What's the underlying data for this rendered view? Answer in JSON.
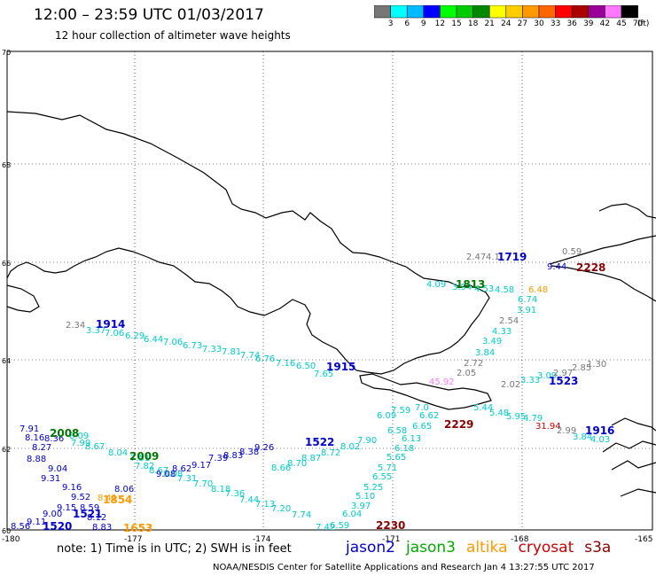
{
  "header": {
    "title": "12:00 – 23:59 UTC 01/03/2017",
    "subtitle": "12 hour collection of altimeter wave heights"
  },
  "colorbar": {
    "unit": "(ft)",
    "ticks": [
      "3",
      "6",
      "9",
      "12",
      "15",
      "18",
      "21",
      "24",
      "27",
      "30",
      "33",
      "36",
      "39",
      "42",
      "45",
      "70"
    ],
    "colors": [
      "#777777",
      "#00ffff",
      "#00bbff",
      "#0000ff",
      "#00ff00",
      "#00cc00",
      "#008800",
      "#ffff00",
      "#ffcc00",
      "#ff9900",
      "#ff6600",
      "#ff0000",
      "#aa0000",
      "#990099",
      "#ff77ff",
      "#000000"
    ]
  },
  "map": {
    "lat_labels": [
      "70",
      "68",
      "66",
      "64",
      "62",
      "60"
    ],
    "lon_labels": [
      "-180",
      "-177",
      "-174",
      "-171",
      "-168",
      "-165"
    ],
    "times": [
      {
        "text": "1719",
        "color": "#0000cc"
      },
      {
        "text": "2228",
        "color": "#8b0000"
      },
      {
        "text": "1813",
        "color": "#007700"
      },
      {
        "text": "1914",
        "color": "#0000cc"
      },
      {
        "text": "1915",
        "color": "#0000cc"
      },
      {
        "text": "1523",
        "color": "#0000cc"
      },
      {
        "text": "2229",
        "color": "#8b0000"
      },
      {
        "text": "1916",
        "color": "#0000cc"
      },
      {
        "text": "2008",
        "color": "#007700"
      },
      {
        "text": "1522",
        "color": "#0000cc"
      },
      {
        "text": "2009",
        "color": "#007700"
      },
      {
        "text": "1854",
        "color": "#ff9900"
      },
      {
        "text": "1521",
        "color": "#0000cc"
      },
      {
        "text": "1520",
        "color": "#0000cc"
      },
      {
        "text": "1653",
        "color": "#ff9900"
      },
      {
        "text": "2230",
        "color": "#8b0000"
      }
    ],
    "values": [
      {
        "text": "2.47",
        "color": "#777777"
      },
      {
        "text": "4.1",
        "color": "#777777"
      },
      {
        "text": "0.59",
        "color": "#777777"
      },
      {
        "text": "9.44",
        "color": "#0000cc"
      },
      {
        "text": "4.09",
        "color": "#00cccc"
      },
      {
        "text": "3.94",
        "color": "#00cccc"
      },
      {
        "text": "4.53",
        "color": "#00cccc"
      },
      {
        "text": "4.58",
        "color": "#00cccc"
      },
      {
        "text": "6.48",
        "color": "#ff9900"
      },
      {
        "text": "6.74",
        "color": "#00cccc"
      },
      {
        "text": "3.91",
        "color": "#00cccc"
      },
      {
        "text": "2.54",
        "color": "#777777"
      },
      {
        "text": "4.33",
        "color": "#00cccc"
      },
      {
        "text": "3.49",
        "color": "#00cccc"
      },
      {
        "text": "3.84",
        "color": "#00cccc"
      },
      {
        "text": "2.72",
        "color": "#777777"
      },
      {
        "text": "2.05",
        "color": "#777777"
      },
      {
        "text": "45.92",
        "color": "#ff77ff"
      },
      {
        "text": "2.02",
        "color": "#777777"
      },
      {
        "text": "3.33",
        "color": "#00cccc"
      },
      {
        "text": "3.09",
        "color": "#00cccc"
      },
      {
        "text": "2.97",
        "color": "#777777"
      },
      {
        "text": "2.85",
        "color": "#777777"
      },
      {
        "text": "1.30",
        "color": "#777777"
      },
      {
        "text": "2.34",
        "color": "#777777"
      },
      {
        "text": "3.37",
        "color": "#00cccc"
      },
      {
        "text": "7.06",
        "color": "#00cccc"
      },
      {
        "text": "6.29",
        "color": "#00cccc"
      },
      {
        "text": "6.44",
        "color": "#00cccc"
      },
      {
        "text": "7.06",
        "color": "#00cccc"
      },
      {
        "text": "6.73",
        "color": "#00cccc"
      },
      {
        "text": "7.33",
        "color": "#00cccc"
      },
      {
        "text": "7.81",
        "color": "#00cccc"
      },
      {
        "text": "7.74",
        "color": "#00cccc"
      },
      {
        "text": "6.76",
        "color": "#00cccc"
      },
      {
        "text": "7.16",
        "color": "#00cccc"
      },
      {
        "text": "6.50",
        "color": "#00cccc"
      },
      {
        "text": "7.65",
        "color": "#00cccc"
      },
      {
        "text": "7.0",
        "color": "#00cccc"
      },
      {
        "text": "5.44",
        "color": "#00cccc"
      },
      {
        "text": "5.48",
        "color": "#00cccc"
      },
      {
        "text": "5.95",
        "color": "#00cccc"
      },
      {
        "text": "4.79",
        "color": "#00cccc"
      },
      {
        "text": "31.94",
        "color": "#cc0000"
      },
      {
        "text": "2.99",
        "color": "#777777"
      },
      {
        "text": "3.84",
        "color": "#00cccc"
      },
      {
        "text": "4.03",
        "color": "#00cccc"
      },
      {
        "text": "7.59",
        "color": "#00cccc"
      },
      {
        "text": "6.09",
        "color": "#00cccc"
      },
      {
        "text": "6.62",
        "color": "#00cccc"
      },
      {
        "text": "6.65",
        "color": "#00cccc"
      },
      {
        "text": "6.58",
        "color": "#00cccc"
      },
      {
        "text": "6.13",
        "color": "#00cccc"
      },
      {
        "text": "6.18",
        "color": "#00cccc"
      },
      {
        "text": "5.65",
        "color": "#00cccc"
      },
      {
        "text": "5.71",
        "color": "#00cccc"
      },
      {
        "text": "6.55",
        "color": "#00cccc"
      },
      {
        "text": "5.25",
        "color": "#00cccc"
      },
      {
        "text": "5.10",
        "color": "#00cccc"
      },
      {
        "text": "3.97",
        "color": "#00cccc"
      },
      {
        "text": "6.04",
        "color": "#00cccc"
      },
      {
        "text": "6.59",
        "color": "#00cccc"
      },
      {
        "text": "7.42",
        "color": "#00cccc"
      },
      {
        "text": "7.74",
        "color": "#00cccc"
      },
      {
        "text": "7.20",
        "color": "#00cccc"
      },
      {
        "text": "7.13",
        "color": "#00cccc"
      },
      {
        "text": "7.44",
        "color": "#00cccc"
      },
      {
        "text": "7.36",
        "color": "#00cccc"
      },
      {
        "text": "8.18",
        "color": "#00cccc"
      },
      {
        "text": "7.70",
        "color": "#00cccc"
      },
      {
        "text": "7.31",
        "color": "#00cccc"
      },
      {
        "text": "8.08",
        "color": "#00cccc"
      },
      {
        "text": "8.67",
        "color": "#00cccc"
      },
      {
        "text": "7.82",
        "color": "#00cccc"
      },
      {
        "text": "7.51",
        "color": "#00cccc"
      },
      {
        "text": "8.04",
        "color": "#00cccc"
      },
      {
        "text": "8.67",
        "color": "#00cccc"
      },
      {
        "text": "7.99",
        "color": "#00cccc"
      },
      {
        "text": "8.09",
        "color": "#00cccc"
      },
      {
        "text": "7.90",
        "color": "#00cccc"
      },
      {
        "text": "8.02",
        "color": "#00cccc"
      },
      {
        "text": "8.72",
        "color": "#00cccc"
      },
      {
        "text": "8.87",
        "color": "#00cccc"
      },
      {
        "text": "8.70",
        "color": "#00cccc"
      },
      {
        "text": "8.66",
        "color": "#00cccc"
      },
      {
        "text": "9.26",
        "color": "#0000cc"
      },
      {
        "text": "8.38",
        "color": "#0000cc"
      },
      {
        "text": "8.83",
        "color": "#0000cc"
      },
      {
        "text": "7.39",
        "color": "#0000cc"
      },
      {
        "text": "9.17",
        "color": "#0000cc"
      },
      {
        "text": "8.62",
        "color": "#0000cc"
      },
      {
        "text": "9.08",
        "color": "#0000cc"
      },
      {
        "text": "8.06",
        "color": "#0000cc"
      },
      {
        "text": "7.91",
        "color": "#0000cc"
      },
      {
        "text": "8.16",
        "color": "#0000cc"
      },
      {
        "text": "8.36",
        "color": "#0000cc"
      },
      {
        "text": "8.27",
        "color": "#0000cc"
      },
      {
        "text": "8.88",
        "color": "#0000cc"
      },
      {
        "text": "9.04",
        "color": "#0000cc"
      },
      {
        "text": "9.31",
        "color": "#0000cc"
      },
      {
        "text": "9.16",
        "color": "#0000cc"
      },
      {
        "text": "9.52",
        "color": "#0000cc"
      },
      {
        "text": "9.15",
        "color": "#0000cc"
      },
      {
        "text": "9.00",
        "color": "#0000cc"
      },
      {
        "text": "9.11",
        "color": "#0000cc"
      },
      {
        "text": "8.56",
        "color": "#0000cc"
      },
      {
        "text": "8.12",
        "color": "#0000cc"
      },
      {
        "text": "8.83",
        "color": "#0000cc"
      },
      {
        "text": "8.59",
        "color": "#0000cc"
      },
      {
        "text": "8.41",
        "color": "#ff9900"
      }
    ]
  },
  "legend": [
    {
      "name": "jason2",
      "color": "#0000cc"
    },
    {
      "name": "jason3",
      "color": "#00aa00"
    },
    {
      "name": "altika",
      "color": "#ff9900"
    },
    {
      "name": "cryosat",
      "color": "#cc0000"
    },
    {
      "name": "s3a",
      "color": "#8b0000"
    }
  ],
  "note": "note:  1) Time is in UTC;  2) SWH is in feet",
  "footer": "NOAA/NESDIS Center for Satellite Applications and Research      Jan  4 13:27:55 UTC 2017"
}
